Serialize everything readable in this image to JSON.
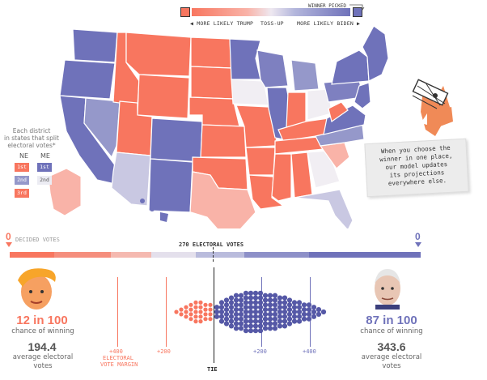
{
  "legend": {
    "winner_picked": "WINNER PICKED",
    "more_trump": "◀ MORE LIKELY TRUMP",
    "tossup": "TOSS-UP",
    "more_biden": "MORE LIKELY BIDEN ▶",
    "trump_color": "#f8765f",
    "biden_color": "#6f72ba"
  },
  "district_legend": {
    "caption_l1": "Each district",
    "caption_l2": "in states that split",
    "caption_l3": "electoral votes*",
    "ne": "NE",
    "me": "ME",
    "ne_districts": [
      "1st",
      "2nd",
      "3rd"
    ],
    "me_districts": [
      "1st",
      "2nd"
    ]
  },
  "callout": {
    "l1": "When you choose the",
    "l2": "winner in one place,",
    "l3": "our model updates",
    "l4": "its projections",
    "l5": "everywhere else."
  },
  "bar": {
    "trump_decided": "0",
    "biden_decided": "0",
    "decided_label": "DECIDED VOTES",
    "threshold_label": "270 ELECTORAL VOTES"
  },
  "trump": {
    "odds": "12 in 100",
    "odds_caption": "chance of winning",
    "avg_ev": "194.4",
    "avg_caption_l1": "average electoral",
    "avg_caption_l2": "votes"
  },
  "biden": {
    "odds": "87 in 100",
    "odds_caption": "chance of winning",
    "avg_ev": "343.6",
    "avg_caption_l1": "average electoral",
    "avg_caption_l2": "votes"
  },
  "margin_axis": {
    "plus400_left": "+400",
    "margin_l1": "ELECTORAL",
    "margin_l2": "VOTE MARGIN",
    "plus200_left": "+200",
    "tie": "TIE",
    "plus200_right": "+200",
    "plus400_right": "+400"
  }
}
